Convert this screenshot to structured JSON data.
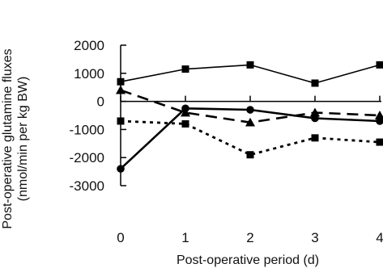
{
  "chart_data": {
    "type": "line",
    "xlabel": "Post-operative period (d)",
    "ylabel_line1": "Post-operative glutamine fluxes",
    "ylabel_line2": "(nmol/min per kg BW)",
    "x": [
      0,
      1,
      2,
      3,
      4
    ],
    "xticks": [
      "0",
      "1",
      "2",
      "3",
      "4"
    ],
    "yticks": [
      {
        "value": 2000,
        "label": "2000"
      },
      {
        "value": 1000,
        "label": "1000"
      },
      {
        "value": 0,
        "label": "0"
      },
      {
        "value": -1000,
        "label": "-1000"
      },
      {
        "value": -2000,
        "label": "-2000"
      },
      {
        "value": -3000,
        "label": "-3000"
      }
    ],
    "xlim": [
      0,
      4
    ],
    "ylim": [
      -3000,
      2000
    ],
    "grid": false,
    "series": [
      {
        "values": [
          700,
          1150,
          1300,
          650,
          1300
        ],
        "marker": "square",
        "line": "solid",
        "weight": "thin",
        "color": "#000000"
      },
      {
        "values": [
          400,
          -400,
          -750,
          -400,
          -500
        ],
        "marker": "triangle",
        "line": "dashed",
        "weight": "thick",
        "color": "#000000"
      },
      {
        "values": [
          -2400,
          -250,
          -300,
          -600,
          -700
        ],
        "marker": "circle",
        "line": "solid",
        "weight": "thick",
        "color": "#000000"
      },
      {
        "values": [
          -700,
          -800,
          -1900,
          -1300,
          -1450
        ],
        "marker": "square",
        "line": "dotted",
        "weight": "thick",
        "color": "#000000"
      }
    ]
  }
}
